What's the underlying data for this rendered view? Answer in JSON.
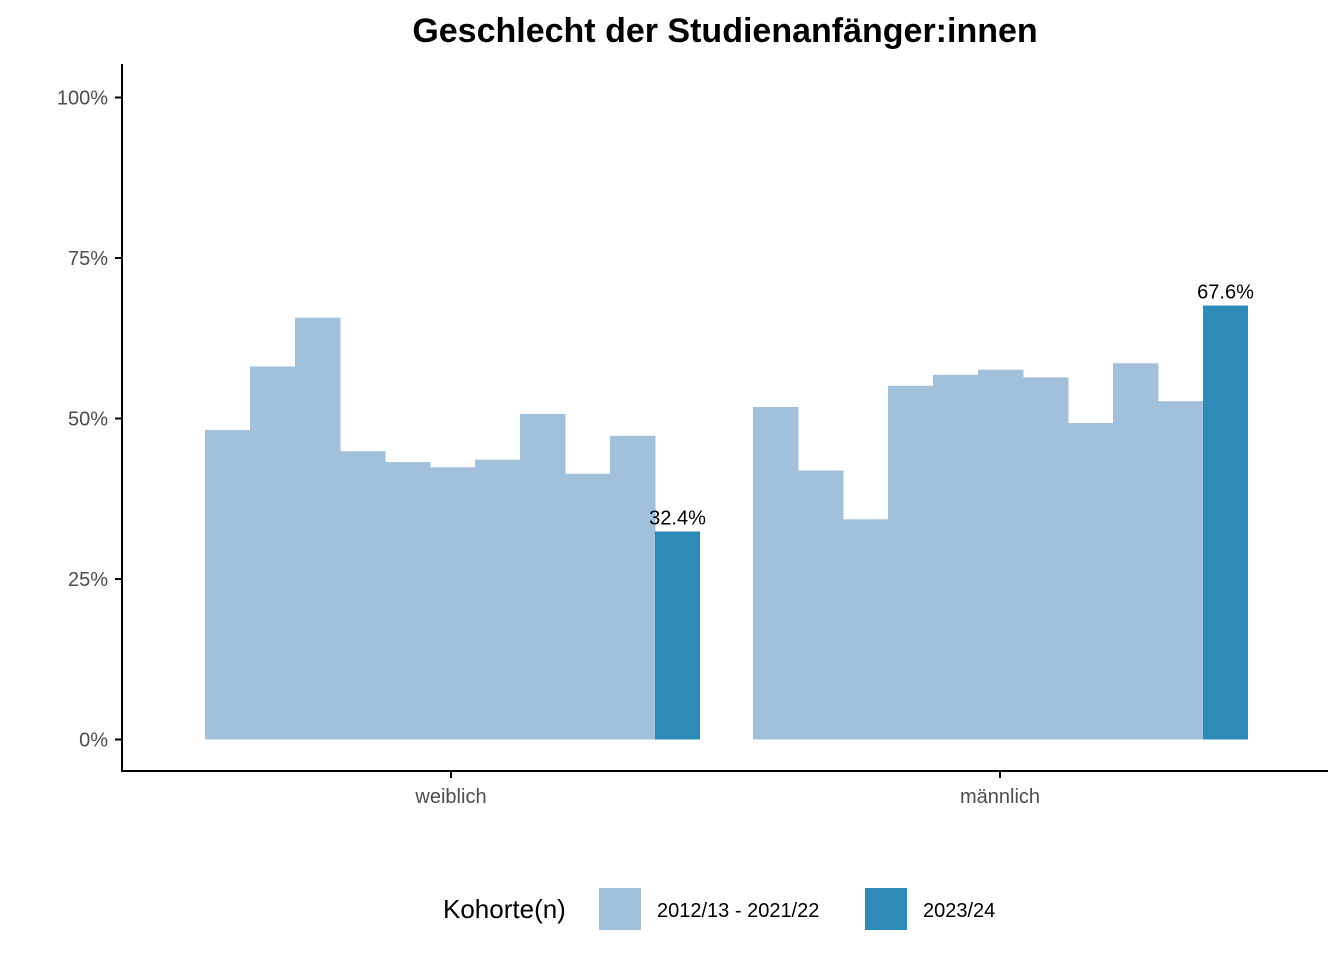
{
  "chart_data": {
    "type": "bar",
    "title": "Geschlecht der Studienanfänger:innen",
    "xlabel": "",
    "ylabel": "",
    "ylim": [
      0,
      1.05
    ],
    "y_ticks": [
      0,
      0.25,
      0.5,
      0.75,
      1.0
    ],
    "y_tick_labels": [
      "0%",
      "25%",
      "50%",
      "75%",
      "100%"
    ],
    "categories": [
      "weiblich",
      "männlich"
    ],
    "series": [
      {
        "name": "2012/13 - 2021/22",
        "color": "#a0c0dc",
        "values_per_category": [
          [
            0.482,
            0.581,
            0.657,
            0.449,
            0.432,
            0.424,
            0.436,
            0.507,
            0.414,
            0.473
          ],
          [
            0.518,
            0.419,
            0.343,
            0.551,
            0.568,
            0.576,
            0.564,
            0.493,
            0.586,
            0.527
          ]
        ]
      },
      {
        "name": "2023/24",
        "color": "#2e8bb7",
        "values": [
          0.324,
          0.676
        ],
        "data_labels": [
          "32.4%",
          "67.6%"
        ]
      }
    ],
    "legend": {
      "title": "Kohorte(n)",
      "position": "bottom",
      "entries": [
        "2012/13 - 2021/22",
        "2023/24"
      ]
    },
    "grid": false
  }
}
